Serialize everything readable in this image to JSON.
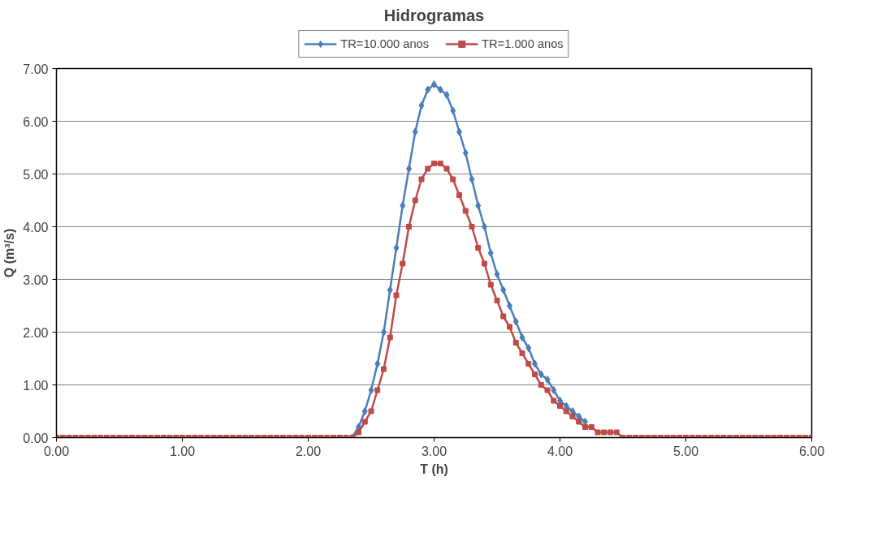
{
  "chart_data": {
    "type": "line",
    "title": "Hidrogramas",
    "xlabel": "T (h)",
    "ylabel": "Q (m³/s)",
    "x": [
      0,
      0.05,
      0.1,
      0.15,
      0.2,
      0.25,
      0.3,
      0.35,
      0.4,
      0.45,
      0.5,
      0.55,
      0.6,
      0.65,
      0.7,
      0.75,
      0.8,
      0.85,
      0.9,
      0.95,
      1,
      1.05,
      1.1,
      1.15,
      1.2,
      1.25,
      1.3,
      1.35,
      1.4,
      1.45,
      1.5,
      1.55,
      1.6,
      1.65,
      1.7,
      1.75,
      1.8,
      1.85,
      1.9,
      1.95,
      2,
      2.05,
      2.1,
      2.15,
      2.2,
      2.25,
      2.3,
      2.35,
      2.4,
      2.45,
      2.5,
      2.55,
      2.6,
      2.65,
      2.7,
      2.75,
      2.8,
      2.85,
      2.9,
      2.95,
      3,
      3.05,
      3.1,
      3.15,
      3.2,
      3.25,
      3.3,
      3.35,
      3.4,
      3.45,
      3.5,
      3.55,
      3.6,
      3.65,
      3.7,
      3.75,
      3.8,
      3.85,
      3.9,
      3.95,
      4,
      4.05,
      4.1,
      4.15,
      4.2,
      4.25,
      4.3,
      4.35,
      4.4,
      4.45,
      4.5,
      4.55,
      4.6,
      4.65,
      4.7,
      4.75,
      4.8,
      4.85,
      4.9,
      4.95,
      5,
      5.05,
      5.1,
      5.15,
      5.2,
      5.25,
      5.3,
      5.35,
      5.4,
      5.45,
      5.5,
      5.55,
      5.6,
      5.65,
      5.7,
      5.75,
      5.8,
      5.85,
      5.9,
      5.95,
      6
    ],
    "series": [
      {
        "name": "TR=10.000 anos",
        "color": "#4a7ebb",
        "marker": "diamond",
        "values": [
          null,
          null,
          null,
          null,
          null,
          null,
          null,
          null,
          null,
          null,
          null,
          null,
          null,
          null,
          null,
          null,
          null,
          null,
          null,
          null,
          null,
          null,
          null,
          null,
          null,
          null,
          null,
          null,
          null,
          null,
          null,
          null,
          null,
          null,
          null,
          null,
          null,
          null,
          null,
          null,
          null,
          null,
          null,
          null,
          null,
          null,
          null,
          0,
          0.2,
          0.5,
          0.9,
          1.4,
          2.0,
          2.8,
          3.6,
          4.4,
          5.1,
          5.8,
          6.3,
          6.6,
          6.7,
          6.6,
          6.5,
          6.2,
          5.8,
          5.4,
          4.9,
          4.4,
          4.0,
          3.5,
          3.1,
          2.8,
          2.5,
          2.2,
          1.9,
          1.7,
          1.4,
          1.2,
          1.1,
          0.9,
          0.7,
          0.6,
          0.5,
          0.4,
          0.3,
          null,
          null,
          null,
          null,
          null,
          null,
          null,
          null,
          null,
          null,
          null,
          null,
          null,
          null,
          null,
          null,
          null,
          null,
          null,
          null,
          null,
          null,
          null,
          null,
          null,
          null,
          null,
          null,
          null,
          null,
          null,
          null,
          null,
          null,
          null,
          null
        ]
      },
      {
        "name": "TR=1.000 anos",
        "color": "#be4b48",
        "marker": "square",
        "values": [
          0,
          0,
          0,
          0,
          0,
          0,
          0,
          0,
          0,
          0,
          0,
          0,
          0,
          0,
          0,
          0,
          0,
          0,
          0,
          0,
          0,
          0,
          0,
          0,
          0,
          0,
          0,
          0,
          0,
          0,
          0,
          0,
          0,
          0,
          0,
          0,
          0,
          0,
          0,
          0,
          0,
          0,
          0,
          0,
          0,
          0,
          0,
          0,
          0.1,
          0.3,
          0.5,
          0.9,
          1.3,
          1.9,
          2.7,
          3.3,
          4.0,
          4.5,
          4.9,
          5.1,
          5.2,
          5.2,
          5.1,
          4.9,
          4.6,
          4.3,
          4.0,
          3.6,
          3.3,
          2.9,
          2.6,
          2.3,
          2.1,
          1.8,
          1.6,
          1.4,
          1.2,
          1.0,
          0.9,
          0.7,
          0.6,
          0.5,
          0.4,
          0.3,
          0.2,
          0.2,
          0.1,
          0.1,
          0.1,
          0.1,
          0,
          0,
          0,
          0,
          0,
          0,
          0,
          0,
          0,
          0,
          0,
          0,
          0,
          0,
          0,
          0,
          0,
          0,
          0,
          0,
          0,
          0,
          0,
          0,
          0,
          0,
          0,
          0,
          0,
          0,
          0
        ]
      }
    ],
    "xlim": [
      0,
      6
    ],
    "ylim": [
      0,
      7
    ],
    "xticks": [
      {
        "value": 0,
        "label": "0.00"
      },
      {
        "value": 1,
        "label": "1.00"
      },
      {
        "value": 2,
        "label": "2.00"
      },
      {
        "value": 3,
        "label": "3.00"
      },
      {
        "value": 4,
        "label": "4.00"
      },
      {
        "value": 5,
        "label": "5.00"
      },
      {
        "value": 6,
        "label": "6.00"
      }
    ],
    "yticks": [
      {
        "value": 0,
        "label": "0.00"
      },
      {
        "value": 1,
        "label": "1.00"
      },
      {
        "value": 2,
        "label": "2.00"
      },
      {
        "value": 3,
        "label": "3.00"
      },
      {
        "value": 4,
        "label": "4.00"
      },
      {
        "value": 5,
        "label": "5.00"
      },
      {
        "value": 6,
        "label": "6.00"
      },
      {
        "value": 7,
        "label": "7.00"
      }
    ],
    "grid": "y",
    "legend": "top",
    "line_style": "solid"
  }
}
